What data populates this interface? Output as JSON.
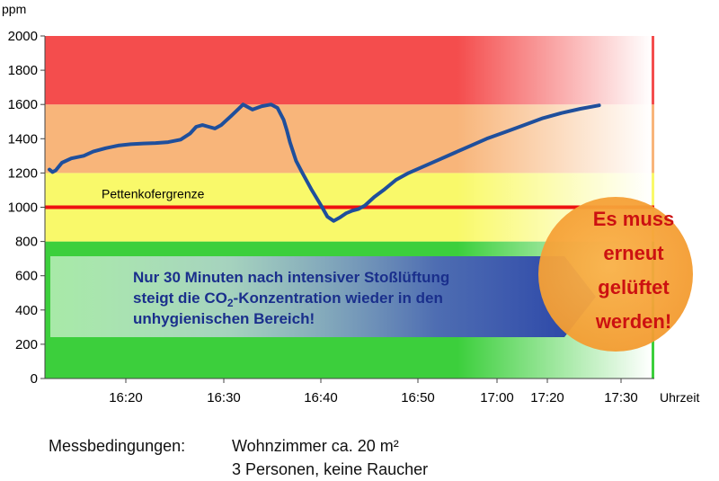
{
  "chart_data": {
    "type": "line",
    "y_unit": "ppm",
    "x_unit": "Uhrzeit",
    "ylim": [
      0,
      2000
    ],
    "y_ticks": [
      "0",
      "200",
      "400",
      "600",
      "800",
      "1000",
      "1200",
      "1400",
      "1600",
      "1800",
      "2000"
    ],
    "x_ticks": [
      "16:20",
      "16:30",
      "16:40",
      "16:50",
      "17:00",
      "17:20",
      "17:30"
    ],
    "zones": [
      {
        "from": 0,
        "to": 800,
        "color": "#3ccf3c"
      },
      {
        "from": 800,
        "to": 1200,
        "color": "#f9f96a"
      },
      {
        "from": 1200,
        "to": 1600,
        "color": "#f8b57a"
      },
      {
        "from": 1600,
        "to": 2000,
        "color": "#f44d4d"
      }
    ],
    "threshold": {
      "value": 1000,
      "label": "Pettenkofergrenze",
      "color": "#ee1111"
    },
    "series": [
      {
        "color": "#1f4f9c",
        "x": [
          0.0,
          0.5,
          1.0,
          2.0,
          3.5,
          5.5,
          7.0,
          9.0,
          11.0,
          13.0,
          15.0,
          17.0,
          19.0,
          21.0,
          22.5,
          23.5,
          24.5,
          25.5,
          26.5,
          27.5,
          29.0,
          30.0,
          31.0,
          32.5,
          34.0,
          35.5,
          36.5,
          37.5,
          38.0,
          38.5,
          39.5,
          40.5,
          42.0,
          43.5,
          44.5,
          45.5,
          46.5,
          47.5,
          48.5,
          49.5,
          50.5,
          52.0,
          53.5,
          55.5,
          57.5,
          60.0,
          62.5,
          65.0,
          67.5,
          70.0,
          73.0,
          76.0,
          79.0,
          82.0,
          85.0,
          88.0
        ],
        "values": [
          1220,
          1205,
          1215,
          1260,
          1285,
          1300,
          1325,
          1345,
          1360,
          1368,
          1372,
          1375,
          1380,
          1395,
          1430,
          1470,
          1480,
          1470,
          1460,
          1480,
          1530,
          1565,
          1600,
          1570,
          1590,
          1600,
          1580,
          1510,
          1450,
          1380,
          1270,
          1200,
          1100,
          1010,
          945,
          920,
          940,
          965,
          980,
          990,
          1010,
          1060,
          1100,
          1160,
          1200,
          1240,
          1280,
          1320,
          1360,
          1400,
          1440,
          1480,
          1520,
          1550,
          1575,
          1595
        ]
      }
    ],
    "annotation_box": {
      "lines": [
        "Nur 30 Minuten nach intensiver Stoßlüftung",
        "steigt die CO",
        "2",
        "-Konzentration wieder in den",
        "unhygienischen Bereich!"
      ],
      "color": "#1a2f8c"
    },
    "callout": {
      "lines": [
        "Es muss",
        "erneut",
        "gelüftet",
        "werden!"
      ],
      "color": "#cc1111",
      "circle_color": "#f7a93d"
    }
  },
  "footer": {
    "label": "Messbedingungen:",
    "lines": [
      "Wohnzimmer ca. 20 m²",
      "3 Personen, keine Raucher"
    ]
  }
}
